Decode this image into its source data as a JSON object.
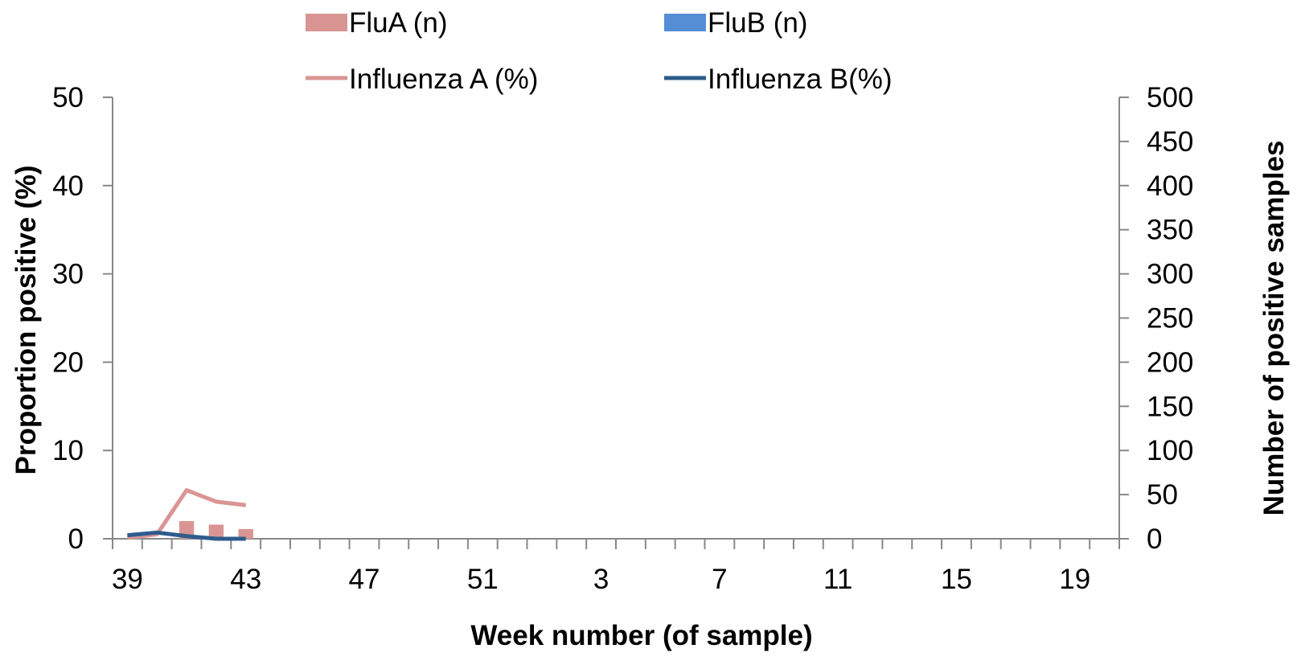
{
  "chart_data": {
    "type": "bar",
    "title": "",
    "xlabel": "Week number (of sample)",
    "ylabel": "Proportion positive (%)",
    "y2label": "Number of positive samples",
    "ylim": [
      0,
      50
    ],
    "y2lim": [
      0,
      500
    ],
    "yticks": [
      0,
      10,
      20,
      30,
      40,
      50
    ],
    "y2ticks": [
      0,
      50,
      100,
      150,
      200,
      250,
      300,
      350,
      400,
      450,
      500
    ],
    "categories": [
      39,
      40,
      41,
      42,
      43,
      44,
      45,
      46,
      47,
      48,
      49,
      50,
      51,
      52,
      1,
      2,
      3,
      4,
      5,
      6,
      7,
      8,
      9,
      10,
      11,
      12,
      13,
      14,
      15,
      16,
      17,
      18,
      19,
      20
    ],
    "xtick_labels": [
      {
        "label": "39",
        "week": 39
      },
      {
        "label": "43",
        "week": 43
      },
      {
        "label": "47",
        "week": 47
      },
      {
        "label": "51",
        "week": 51
      },
      {
        "label": "3",
        "week": 3
      },
      {
        "label": "7",
        "week": 7
      },
      {
        "label": "11",
        "week": 11
      },
      {
        "label": "15",
        "week": 15
      },
      {
        "label": "19",
        "week": 19
      }
    ],
    "bars": [
      {
        "name": "FluA (n)",
        "color": "#d99594",
        "axis": "right",
        "data": [
          {
            "week": 41,
            "value": 20
          },
          {
            "week": 42,
            "value": 16
          },
          {
            "week": 43,
            "value": 11
          }
        ]
      },
      {
        "name": "FluB (n)",
        "color": "#558ed5",
        "axis": "right",
        "data": []
      }
    ],
    "lines": [
      {
        "name": "Influenza A (%)",
        "color": "#d99594",
        "axis": "left",
        "data": [
          {
            "week": 39,
            "value": 0.1
          },
          {
            "week": 40,
            "value": 0.5
          },
          {
            "week": 41,
            "value": 5.5
          },
          {
            "week": 42,
            "value": 4.2
          },
          {
            "week": 43,
            "value": 3.8
          }
        ]
      },
      {
        "name": "Influenza B(%)",
        "color": "#2e5b8c",
        "axis": "left",
        "data": [
          {
            "week": 39,
            "value": 0.4
          },
          {
            "week": 40,
            "value": 0.7
          },
          {
            "week": 41,
            "value": 0.3
          },
          {
            "week": 42,
            "value": 0.0
          },
          {
            "week": 43,
            "value": 0.0
          }
        ]
      }
    ],
    "legend": [
      {
        "label": "FluA (n)",
        "kind": "bar",
        "color": "#d99594"
      },
      {
        "label": "FluB (n)",
        "kind": "bar",
        "color": "#558ed5"
      },
      {
        "label": "Influenza A (%)",
        "kind": "line",
        "color": "#d99594"
      },
      {
        "label": "Influenza B(%)",
        "kind": "line",
        "color": "#2e5b8c"
      }
    ],
    "legend_position": "top",
    "grid": false
  }
}
